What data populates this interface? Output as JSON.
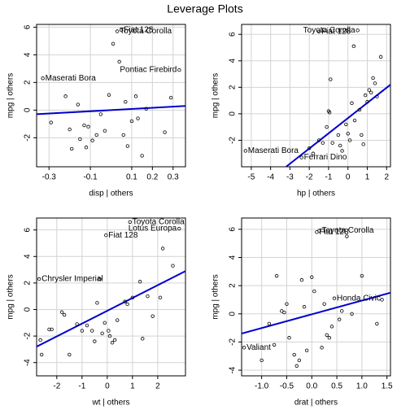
{
  "title": "Leverage Plots",
  "chart_data": [
    {
      "type": "scatter",
      "xlabel": "disp | others",
      "ylabel": "mpg | others",
      "x": [
        -0.33,
        -0.29,
        -0.22,
        -0.2,
        -0.19,
        -0.16,
        -0.15,
        -0.13,
        -0.12,
        -0.11,
        -0.09,
        -0.07,
        -0.05,
        -0.03,
        -0.01,
        0.01,
        0.03,
        0.05,
        0.04,
        0.06,
        0.07,
        0.08,
        0.1,
        0.12,
        0.13,
        0.15,
        0.17,
        0.26,
        0.29,
        0.33
      ],
      "y": [
        2.3,
        -0.9,
        1.0,
        -1.4,
        -2.8,
        0.4,
        -2.1,
        -1.1,
        -2.7,
        -1.2,
        -2.2,
        -1.8,
        -0.3,
        -1.5,
        1.1,
        4.8,
        5.7,
        5.8,
        3.5,
        -1.8,
        0.6,
        -2.6,
        -0.8,
        1.0,
        -0.6,
        -3.3,
        0.1,
        -1.6,
        0.9,
        2.9
      ],
      "labels": [
        "Maserati Bora",
        null,
        null,
        null,
        null,
        null,
        null,
        null,
        null,
        null,
        null,
        null,
        null,
        null,
        null,
        null,
        "Toyota Corolla",
        "Fiat 128",
        null,
        null,
        null,
        null,
        null,
        null,
        null,
        null,
        null,
        null,
        null,
        "Pontiac Firebird"
      ],
      "xlim": [
        -0.36,
        0.36
      ],
      "ylim": [
        -4.1,
        6.2
      ],
      "xticks": [
        -0.3,
        -0.1,
        0.1,
        0.2,
        0.3
      ],
      "yticks": [
        -2,
        0,
        2,
        4,
        6
      ],
      "grid": true,
      "point_color": "#000000",
      "line_color": "#0000cc",
      "fit_line": {
        "x": [
          -0.36,
          0.36
        ],
        "y": [
          -0.3,
          0.3
        ]
      }
    },
    {
      "type": "scatter",
      "xlabel": "hp | others",
      "ylabel": "mpg | others",
      "x": [
        -5.3,
        -2.4,
        -2.0,
        -1.8,
        -1.5,
        -1.3,
        -1.1,
        -1.0,
        -0.95,
        -0.9,
        -0.8,
        -0.5,
        -0.4,
        -0.3,
        -0.1,
        0.0,
        0.1,
        0.2,
        0.3,
        0.35,
        0.5,
        0.6,
        0.7,
        0.8,
        0.9,
        1.0,
        1.1,
        1.2,
        1.3,
        1.4,
        1.5,
        1.7,
        -1.5
      ],
      "y": [
        -2.8,
        -3.3,
        -2.6,
        -3.0,
        -2.0,
        -2.2,
        -1.0,
        0.2,
        0.1,
        2.6,
        -2.2,
        -1.6,
        -2.4,
        -2.8,
        -0.8,
        -1.5,
        -2.0,
        0.8,
        5.1,
        -0.5,
        6.3,
        0.3,
        -1.6,
        -2.3,
        1.4,
        0.9,
        1.8,
        1.6,
        2.7,
        2.3,
        1.3,
        4.3,
        6.2
      ],
      "labels": [
        "Maserati Bora",
        "Ferrari Dino",
        null,
        null,
        null,
        null,
        null,
        null,
        null,
        null,
        null,
        null,
        null,
        null,
        null,
        null,
        null,
        null,
        null,
        null,
        "Toyota Corolla",
        null,
        null,
        null,
        null,
        null,
        null,
        null,
        null,
        null,
        null,
        null,
        "Fiat 128"
      ],
      "xlim": [
        -5.5,
        2.2
      ],
      "ylim": [
        -4.0,
        6.75
      ],
      "xticks": [
        -5,
        -4,
        -3,
        -2,
        -1,
        0,
        1,
        2
      ],
      "yticks": [
        -2,
        0,
        2,
        4,
        6
      ],
      "grid": true,
      "point_color": "#000000",
      "line_color": "#0000cc",
      "fit_line": {
        "x": [
          -3.2,
          2.2
        ],
        "y": [
          -4.0,
          2.2
        ]
      }
    },
    {
      "type": "scatter",
      "xlabel": "wt | others",
      "ylabel": "mpg | others",
      "x": [
        -2.7,
        -2.6,
        -2.65,
        -2.3,
        -2.2,
        -1.8,
        -1.7,
        -1.5,
        -1.2,
        -1.0,
        -0.8,
        -0.6,
        -0.5,
        -0.4,
        -0.3,
        -0.2,
        -0.1,
        -0.05,
        0.05,
        0.1,
        0.2,
        0.3,
        0.4,
        0.7,
        0.8,
        0.9,
        1.0,
        1.3,
        1.4,
        1.6,
        1.8,
        2.1,
        2.2,
        2.6,
        2.85
      ],
      "y": [
        2.3,
        -3.4,
        -2.3,
        -1.5,
        -1.5,
        -0.2,
        -0.4,
        -3.4,
        -1.1,
        -1.6,
        -1.2,
        -1.6,
        -2.4,
        0.5,
        2.3,
        -1.8,
        -1.0,
        5.6,
        -1.6,
        -2.0,
        -2.5,
        -2.3,
        -0.8,
        0.6,
        0.4,
        6.6,
        0.9,
        2.1,
        -2.2,
        1.0,
        -0.5,
        0.9,
        4.6,
        3.3,
        6.1
      ],
      "labels": [
        "Chrysler Imperial",
        null,
        null,
        null,
        null,
        null,
        null,
        null,
        null,
        null,
        null,
        null,
        null,
        null,
        null,
        null,
        null,
        "Fiat 128",
        null,
        null,
        null,
        null,
        null,
        null,
        null,
        "Toyota Corolla",
        null,
        null,
        null,
        null,
        null,
        null,
        null,
        null,
        "Lotus Europa"
      ],
      "xlim": [
        -2.8,
        3.1
      ],
      "ylim": [
        -5.0,
        6.9
      ],
      "xticks": [
        -2,
        -1,
        0,
        1,
        2
      ],
      "yticks": [
        -4,
        -2,
        0,
        2,
        4,
        6
      ],
      "grid": true,
      "point_color": "#000000",
      "line_color": "#0000cc",
      "fit_line": {
        "x": [
          -2.8,
          3.1
        ],
        "y": [
          -2.8,
          2.9
        ]
      }
    },
    {
      "type": "scatter",
      "xlabel": "drat | others",
      "ylabel": "mpg | others",
      "x": [
        -1.35,
        -1.0,
        -0.85,
        -0.75,
        -0.7,
        -0.6,
        -0.55,
        -0.5,
        -0.45,
        -0.35,
        -0.3,
        -0.25,
        -0.2,
        -0.15,
        -0.1,
        0.0,
        0.05,
        0.1,
        0.15,
        0.2,
        0.25,
        0.3,
        0.35,
        0.4,
        0.45,
        0.55,
        0.6,
        0.7,
        0.8,
        1.0,
        1.3,
        1.4
      ],
      "y": [
        -2.4,
        -3.3,
        -0.7,
        -2.2,
        2.7,
        0.2,
        0.1,
        0.7,
        -1.7,
        -2.9,
        -3.7,
        -3.3,
        2.4,
        0.5,
        -2.6,
        2.6,
        1.6,
        5.8,
        5.9,
        -2.4,
        0.7,
        -1.5,
        -1.7,
        -0.9,
        1.1,
        -0.4,
        0.2,
        5.5,
        0.0,
        2.7,
        -0.7,
        1.0
      ],
      "labels": [
        "Valiant",
        null,
        null,
        null,
        null,
        null,
        null,
        null,
        null,
        null,
        null,
        null,
        null,
        null,
        null,
        null,
        null,
        "Fiat 128",
        "Toyota Corolla",
        null,
        null,
        null,
        null,
        null,
        "Honda Civic",
        null,
        null,
        null,
        null,
        null,
        null,
        null
      ],
      "xlim": [
        -1.4,
        1.57
      ],
      "ylim": [
        -4.4,
        6.8
      ],
      "xticks": [
        {
          "value": -1,
          "label": "-1.0"
        },
        -0.5,
        {
          "value": 0,
          "label": "0.0"
        },
        0.5,
        {
          "value": 1,
          "label": "1.0"
        },
        1.5
      ],
      "yticks": [
        -4,
        -2,
        0,
        2,
        4,
        6
      ],
      "grid": true,
      "point_color": "#000000",
      "line_color": "#0000cc",
      "fit_line": {
        "x": [
          -1.4,
          1.57
        ],
        "y": [
          -1.4,
          1.5
        ]
      }
    }
  ]
}
